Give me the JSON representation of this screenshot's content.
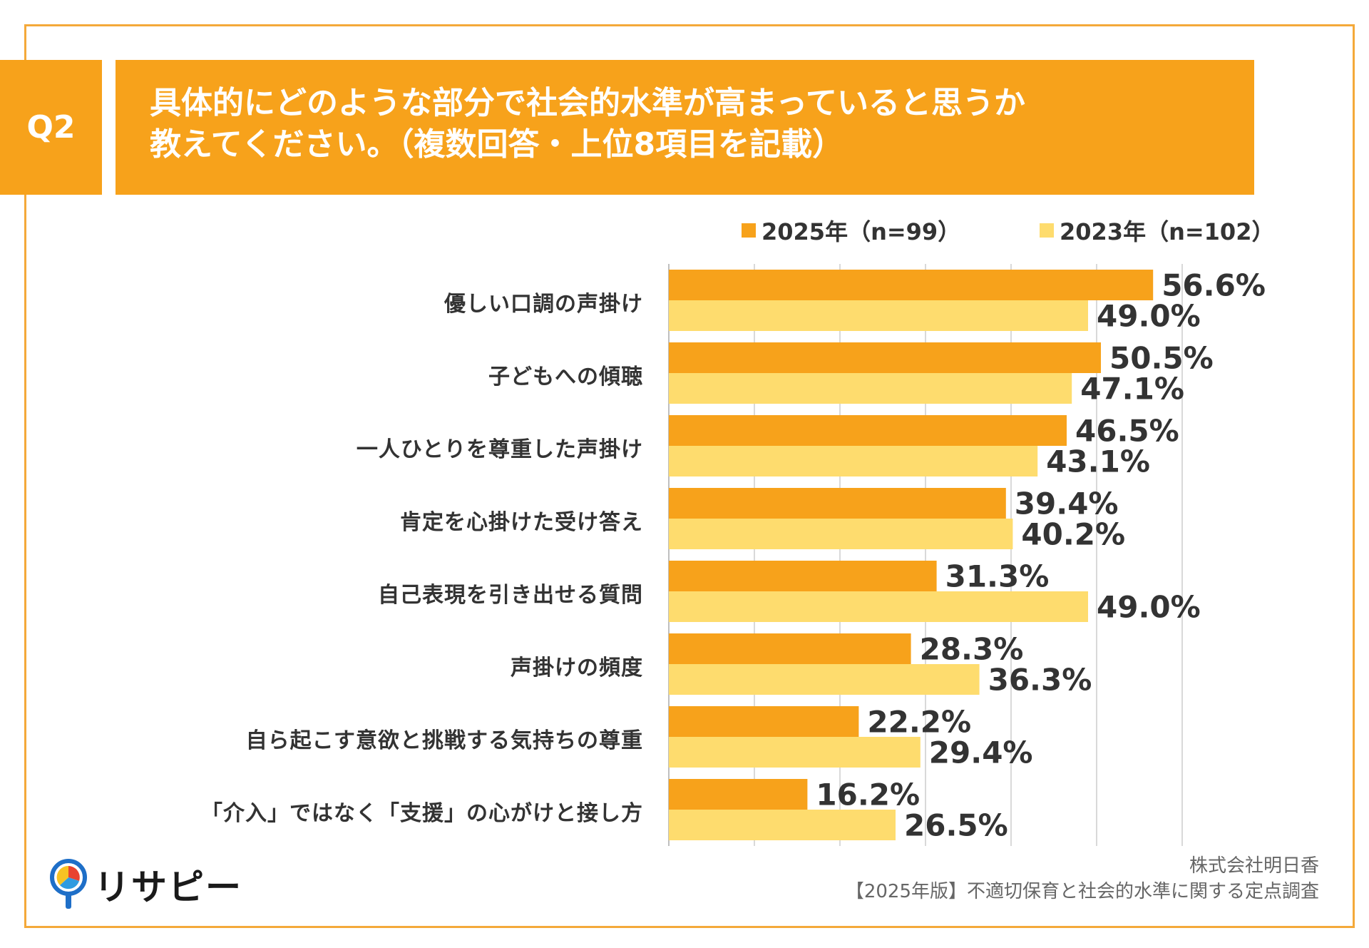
{
  "question": {
    "tag": "Q2",
    "title_lines": [
      "具体的にどのような部分で社会的水準が高まっていると思うか",
      "教えてください。（複数回答・上位8項目を記載）"
    ]
  },
  "colors": {
    "series_2025": "#f7a21b",
    "series_2023": "#fedc6e",
    "frame": "#f4a93a",
    "title_bg": "#f7a21b"
  },
  "chart_data": {
    "type": "bar",
    "orientation": "horizontal",
    "title": "具体的にどのような部分で社会的水準が高まっていると思うか教えてください。（複数回答・上位8項目を記載）",
    "categories": [
      "優しい口調の声掛け",
      "子どもへの傾聴",
      "一人ひとりを尊重した声掛け",
      "肯定を心掛けた受け答え",
      "自己表現を引き出せる質問",
      "声掛けの頻度",
      "自ら起こす意欲と挑戦する気持ちの尊重",
      "「介入」ではなく「支援」の心がけと接し方"
    ],
    "series": [
      {
        "name": "2025年（n=99）",
        "values": [
          56.6,
          50.5,
          46.5,
          39.4,
          31.3,
          28.3,
          22.2,
          16.2
        ],
        "labels": [
          "56.6%",
          "50.5%",
          "46.5%",
          "39.4%",
          "31.3%",
          "28.3%",
          "22.2%",
          "16.2%"
        ]
      },
      {
        "name": "2023年（n=102）",
        "values": [
          49.0,
          47.1,
          43.1,
          40.2,
          49.0,
          36.3,
          29.4,
          26.5
        ],
        "labels": [
          "49.0%",
          "47.1%",
          "43.1%",
          "40.2%",
          "49.0%",
          "36.3%",
          "29.4%",
          "26.5%"
        ]
      }
    ],
    "xlim": [
      0,
      60
    ],
    "grid": true,
    "legend": "top-right",
    "xlabel": "",
    "ylabel": ""
  },
  "footer": {
    "company": "株式会社明日香",
    "survey": "【2025年版】不適切保育と社会的水準に関する定点調査"
  },
  "brand": {
    "name": "リサピー"
  }
}
